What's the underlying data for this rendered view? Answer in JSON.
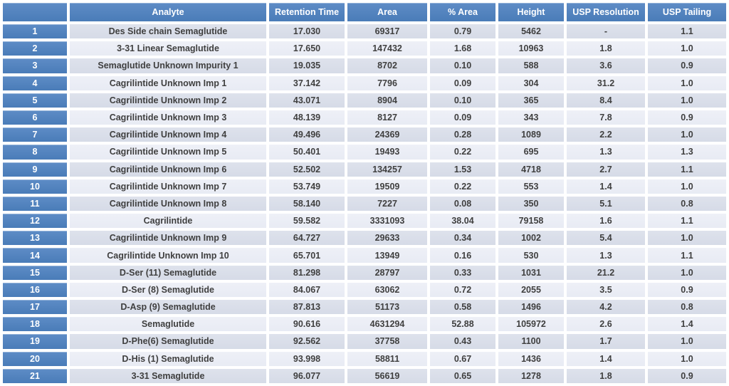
{
  "chart_data": {
    "type": "table",
    "title": "",
    "row_number_header": "",
    "columns": [
      "Analyte",
      "Retention Time",
      "Area",
      "% Area",
      "Height",
      "USP Resolution",
      "USP Tailing"
    ],
    "rows": [
      [
        "1",
        "Des Side chain Semaglutide",
        "17.030",
        "69317",
        "0.79",
        "5462",
        "-",
        "1.1"
      ],
      [
        "2",
        "3-31 Linear Semaglutide",
        "17.650",
        "147432",
        "1.68",
        "10963",
        "1.8",
        "1.0"
      ],
      [
        "3",
        "Semaglutide Unknown Impurity 1",
        "19.035",
        "8702",
        "0.10",
        "588",
        "3.6",
        "0.9"
      ],
      [
        "4",
        "Cagrilintide Unknown Imp 1",
        "37.142",
        "7796",
        "0.09",
        "304",
        "31.2",
        "1.0"
      ],
      [
        "5",
        "Cagrilintide Unknown Imp 2",
        "43.071",
        "8904",
        "0.10",
        "365",
        "8.4",
        "1.0"
      ],
      [
        "6",
        "Cagrilintide Unknown Imp 3",
        "48.139",
        "8127",
        "0.09",
        "343",
        "7.8",
        "0.9"
      ],
      [
        "7",
        "Cagrilintide Unknown Imp 4",
        "49.496",
        "24369",
        "0.28",
        "1089",
        "2.2",
        "1.0"
      ],
      [
        "8",
        "Cagrilintide Unknown Imp 5",
        "50.401",
        "19493",
        "0.22",
        "695",
        "1.3",
        "1.3"
      ],
      [
        "9",
        "Cagrilintide Unknown Imp 6",
        "52.502",
        "134257",
        "1.53",
        "4718",
        "2.7",
        "1.1"
      ],
      [
        "10",
        "Cagrilintide Unknown Imp 7",
        "53.749",
        "19509",
        "0.22",
        "553",
        "1.4",
        "1.0"
      ],
      [
        "11",
        "Cagrilintide Unknown Imp 8",
        "58.140",
        "7227",
        "0.08",
        "350",
        "5.1",
        "0.8"
      ],
      [
        "12",
        "Cagrilintide",
        "59.582",
        "3331093",
        "38.04",
        "79158",
        "1.6",
        "1.1"
      ],
      [
        "13",
        "Cagrilintide Unknown Imp 9",
        "64.727",
        "29633",
        "0.34",
        "1002",
        "5.4",
        "1.0"
      ],
      [
        "14",
        "Cagrilintide Unknown Imp 10",
        "65.701",
        "13949",
        "0.16",
        "530",
        "1.3",
        "1.1"
      ],
      [
        "15",
        "D-Ser (11) Semaglutide",
        "81.298",
        "28797",
        "0.33",
        "1031",
        "21.2",
        "1.0"
      ],
      [
        "16",
        "D-Ser (8) Semaglutide",
        "84.067",
        "63062",
        "0.72",
        "2055",
        "3.5",
        "0.9"
      ],
      [
        "17",
        "D-Asp (9) Semaglutide",
        "87.813",
        "51173",
        "0.58",
        "1496",
        "4.2",
        "0.8"
      ],
      [
        "18",
        "Semaglutide",
        "90.616",
        "4631294",
        "52.88",
        "105972",
        "2.6",
        "1.4"
      ],
      [
        "19",
        "D-Phe(6) Semaglutide",
        "92.562",
        "37758",
        "0.43",
        "1100",
        "1.7",
        "1.0"
      ],
      [
        "20",
        "D-His (1) Semaglutide",
        "93.998",
        "58811",
        "0.67",
        "1436",
        "1.4",
        "1.0"
      ],
      [
        "21",
        "3-31 Semaglutide",
        "96.077",
        "56619",
        "0.65",
        "1278",
        "1.8",
        "0.9"
      ]
    ],
    "layout": {
      "header_position": "top",
      "banded_rows": true,
      "grid": "white-gutters"
    },
    "colors": {
      "header_bg": "#4e81bd",
      "row_number_bg": "#4e81bd",
      "header_text": "#ffffff",
      "row_odd_bg": "#d9dde9",
      "row_even_bg": "#ebeef6",
      "cell_text": "#3f3f3f",
      "gutter": "#ffffff"
    }
  }
}
